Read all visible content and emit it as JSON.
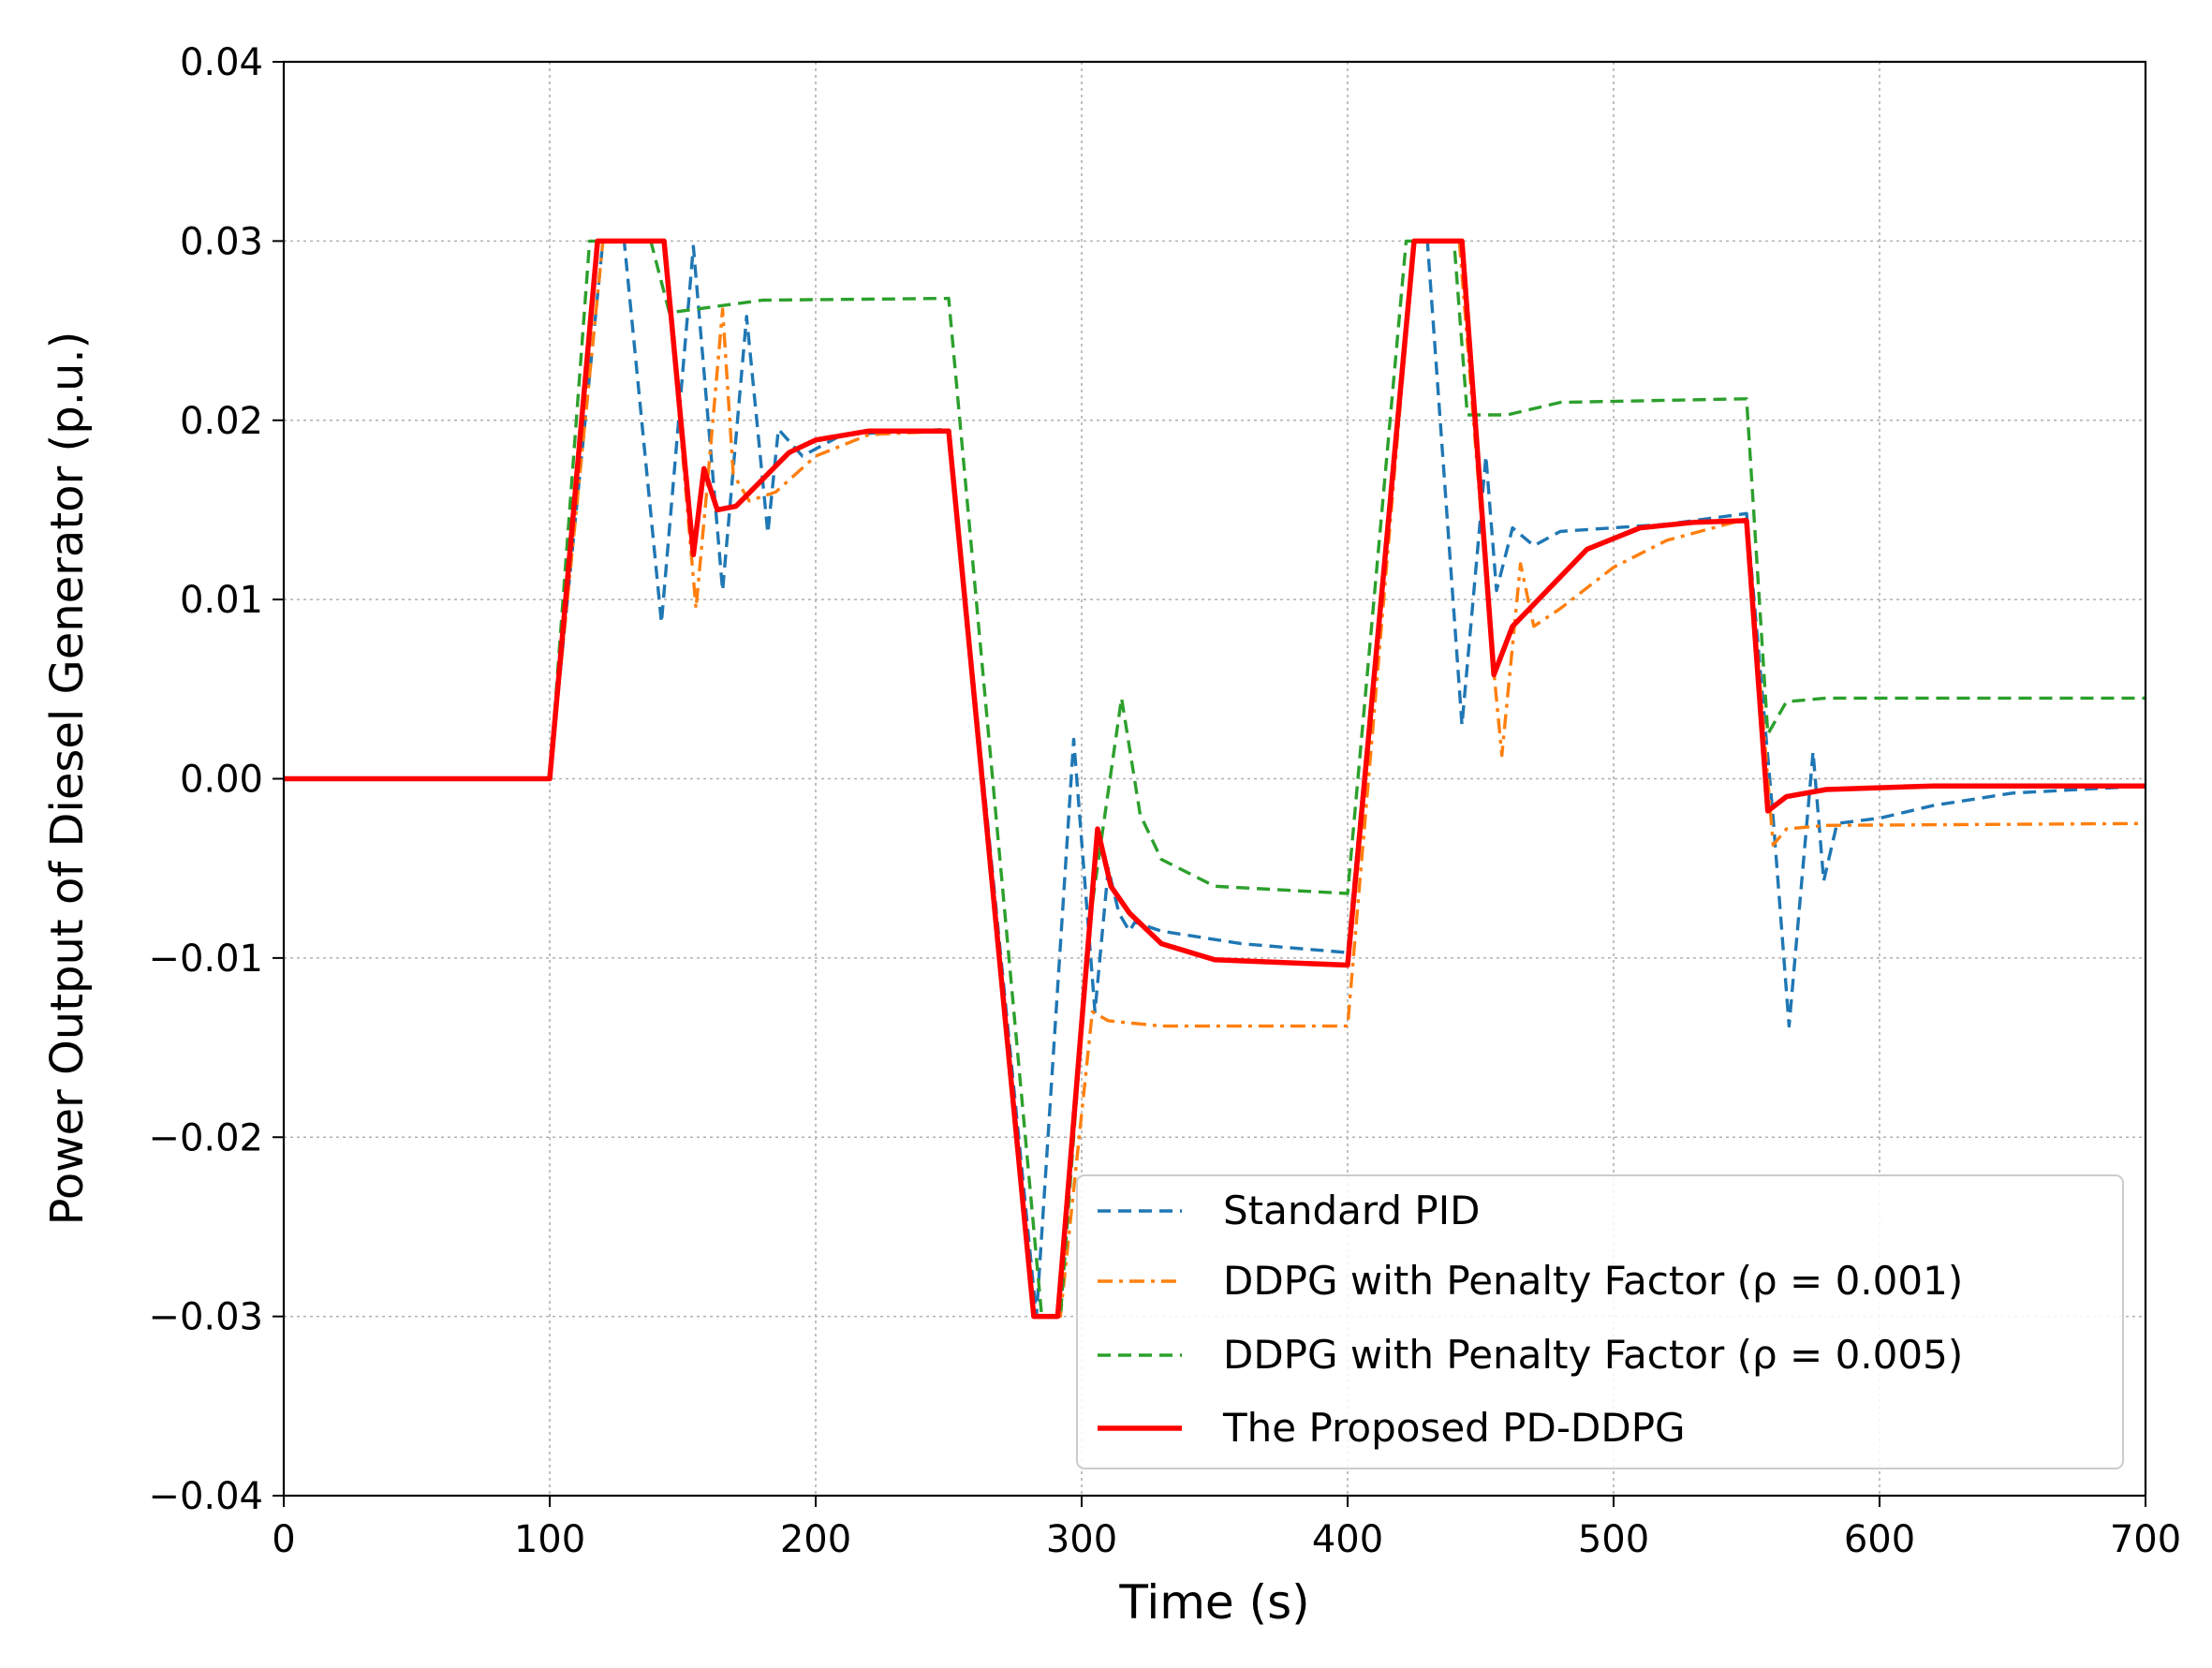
{
  "chart_data": {
    "type": "line",
    "title": "",
    "xlabel": "Time (s)",
    "ylabel": "Power Output of Diesel Generator (p.u.)",
    "xlim": [
      0,
      700
    ],
    "ylim": [
      -0.04,
      0.04
    ],
    "xticks": [
      0,
      100,
      200,
      300,
      400,
      500,
      600,
      700
    ],
    "yticks": [
      -0.04,
      -0.03,
      -0.02,
      -0.01,
      0.0,
      0.01,
      0.02,
      0.03,
      0.04
    ],
    "xtick_labels": [
      "0",
      "100",
      "200",
      "300",
      "400",
      "500",
      "600",
      "700"
    ],
    "ytick_labels": [
      "−0.04",
      "−0.03",
      "−0.02",
      "−0.01",
      "0.00",
      "0.01",
      "0.02",
      "0.03",
      "0.04"
    ],
    "grid": true,
    "legend_position": "bottom-right",
    "series": [
      {
        "name": "Standard PID",
        "color": "#1f77b4",
        "style": "dashed",
        "points": [
          [
            0,
            0
          ],
          [
            100,
            0
          ],
          [
            120,
            0.03
          ],
          [
            128,
            0.03
          ],
          [
            142,
            0.0087
          ],
          [
            154,
            0.0297
          ],
          [
            165,
            0.0105
          ],
          [
            174,
            0.0258
          ],
          [
            182,
            0.0137
          ],
          [
            186,
            0.0195
          ],
          [
            195,
            0.018
          ],
          [
            210,
            0.0192
          ],
          [
            250,
            0.0195
          ],
          [
            283,
            -0.03
          ],
          [
            297,
            0.0022
          ],
          [
            305,
            -0.013
          ],
          [
            310,
            -0.005
          ],
          [
            314,
            -0.0075
          ],
          [
            318,
            -0.0085
          ],
          [
            320,
            -0.008
          ],
          [
            330,
            -0.0085
          ],
          [
            360,
            -0.0092
          ],
          [
            400,
            -0.0097
          ],
          [
            425,
            0.03
          ],
          [
            430,
            0.03
          ],
          [
            443,
            0.003
          ],
          [
            452,
            0.018
          ],
          [
            456,
            0.0105
          ],
          [
            462,
            0.014
          ],
          [
            470,
            0.013
          ],
          [
            480,
            0.0138
          ],
          [
            520,
            0.0142
          ],
          [
            550,
            0.0148
          ],
          [
            560,
            -0.0022
          ],
          [
            566,
            -0.0138
          ],
          [
            575,
            0.0015
          ],
          [
            579,
            -0.0057
          ],
          [
            584,
            -0.0025
          ],
          [
            600,
            -0.0022
          ],
          [
            620,
            -0.0015
          ],
          [
            650,
            -0.0008
          ],
          [
            700,
            -0.0004
          ]
        ]
      },
      {
        "name": "DDPG with Penalty Factor (ρ = 0.001)",
        "color": "#ff7f0e",
        "style": "dashdot",
        "points": [
          [
            0,
            0
          ],
          [
            100,
            0
          ],
          [
            120,
            0.03
          ],
          [
            143,
            0.03
          ],
          [
            155,
            0.0095
          ],
          [
            159,
            0.016
          ],
          [
            165,
            0.0262
          ],
          [
            169,
            0.017
          ],
          [
            175,
            0.0155
          ],
          [
            185,
            0.016
          ],
          [
            200,
            0.018
          ],
          [
            220,
            0.0192
          ],
          [
            250,
            0.0194
          ],
          [
            282,
            -0.03
          ],
          [
            292,
            -0.03
          ],
          [
            304,
            -0.013
          ],
          [
            310,
            -0.0135
          ],
          [
            330,
            -0.0138
          ],
          [
            400,
            -0.0138
          ],
          [
            425,
            0.03
          ],
          [
            442,
            0.03
          ],
          [
            454,
            0.0075
          ],
          [
            458,
            0.0013
          ],
          [
            465,
            0.012
          ],
          [
            470,
            0.0085
          ],
          [
            480,
            0.0095
          ],
          [
            500,
            0.0118
          ],
          [
            520,
            0.0133
          ],
          [
            550,
            0.0145
          ],
          [
            560,
            -0.0037
          ],
          [
            565,
            -0.0028
          ],
          [
            580,
            -0.0026
          ],
          [
            700,
            -0.0025
          ]
        ]
      },
      {
        "name": "DDPG with Penalty Factor (ρ = 0.005)",
        "color": "#2ca02c",
        "style": "dashed",
        "points": [
          [
            0,
            0
          ],
          [
            100,
            0
          ],
          [
            115,
            0.03
          ],
          [
            138,
            0.03
          ],
          [
            145,
            0.026
          ],
          [
            155,
            0.0262
          ],
          [
            180,
            0.0267
          ],
          [
            250,
            0.0268
          ],
          [
            285,
            -0.03
          ],
          [
            292,
            -0.03
          ],
          [
            303,
            -0.008
          ],
          [
            315,
            0.0045
          ],
          [
            322,
            -0.002
          ],
          [
            330,
            -0.0045
          ],
          [
            350,
            -0.006
          ],
          [
            400,
            -0.0064
          ],
          [
            422,
            0.03
          ],
          [
            440,
            0.03
          ],
          [
            445,
            0.0203
          ],
          [
            460,
            0.0203
          ],
          [
            480,
            0.021
          ],
          [
            550,
            0.0212
          ],
          [
            558,
            0.0025
          ],
          [
            565,
            0.0043
          ],
          [
            580,
            0.0045
          ],
          [
            700,
            0.0045
          ]
        ]
      },
      {
        "name": "The Proposed PD-DDPG",
        "color": "#ff0000",
        "style": "solid",
        "points": [
          [
            0,
            0
          ],
          [
            100,
            0
          ],
          [
            118,
            0.03
          ],
          [
            143,
            0.03
          ],
          [
            154,
            0.0125
          ],
          [
            158,
            0.0173
          ],
          [
            163,
            0.015
          ],
          [
            170,
            0.0152
          ],
          [
            180,
            0.0167
          ],
          [
            190,
            0.0182
          ],
          [
            200,
            0.0189
          ],
          [
            220,
            0.0194
          ],
          [
            250,
            0.0194
          ],
          [
            282,
            -0.03
          ],
          [
            291,
            -0.03
          ],
          [
            306,
            -0.0028
          ],
          [
            311,
            -0.006
          ],
          [
            318,
            -0.0075
          ],
          [
            330,
            -0.0092
          ],
          [
            350,
            -0.0101
          ],
          [
            400,
            -0.0104
          ],
          [
            425,
            0.03
          ],
          [
            443,
            0.03
          ],
          [
            455,
            0.0058
          ],
          [
            462,
            0.0085
          ],
          [
            475,
            0.0105
          ],
          [
            490,
            0.0128
          ],
          [
            510,
            0.014
          ],
          [
            530,
            0.0143
          ],
          [
            550,
            0.0144
          ],
          [
            558,
            -0.0018
          ],
          [
            565,
            -0.001
          ],
          [
            580,
            -0.0006
          ],
          [
            620,
            -0.0004
          ],
          [
            700,
            -0.0004
          ]
        ]
      }
    ]
  }
}
